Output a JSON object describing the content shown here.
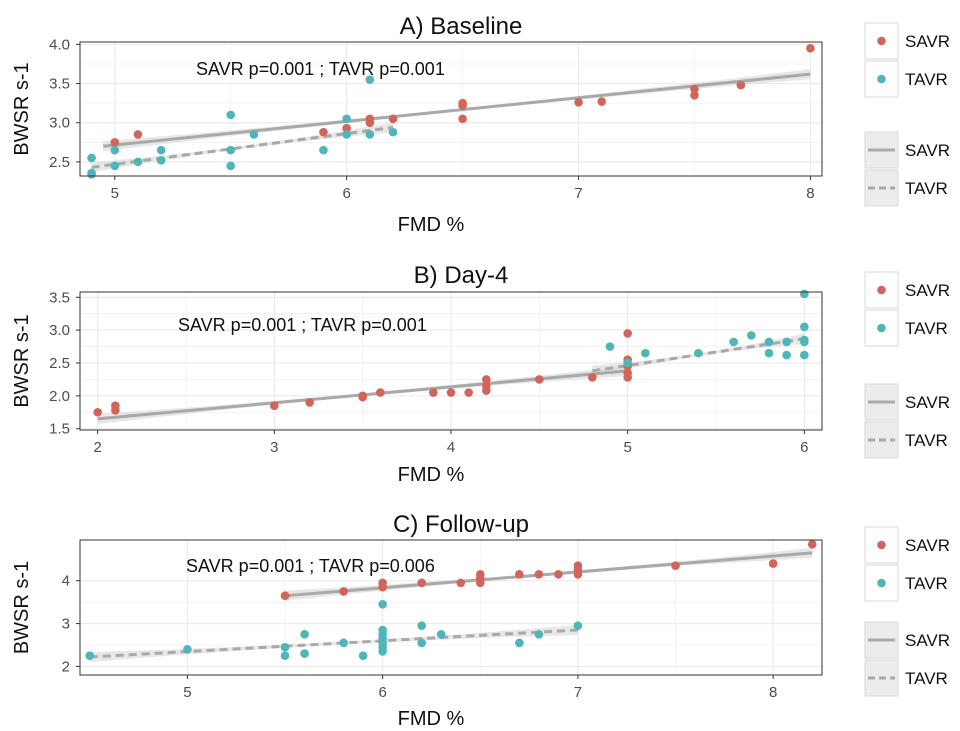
{
  "figure": {
    "colors": {
      "SAVR": "#d2645a",
      "TAVR": "#4db6b8",
      "fit_line": "#a9a9a9",
      "ribbon": "#d4d4d4",
      "grid": "#ebebeb",
      "panel_border": "#333333"
    }
  },
  "chart_data": [
    {
      "type": "scatter",
      "title": "A) Baseline",
      "xlabel": "FMD %",
      "ylabel": "BWSR s-1",
      "annotation": "SAVR p=0.001 ; TAVR p=0.001",
      "xlim": [
        4.85,
        8.05
      ],
      "ylim": [
        2.32,
        4.03
      ],
      "xticks": [
        5,
        6,
        7,
        8
      ],
      "yticks": [
        2.5,
        3.0,
        3.5,
        4.0
      ],
      "ytick_labels": [
        "2.5",
        "3.0",
        "3.5",
        "4.0"
      ],
      "grid": true,
      "legend_position": "right",
      "point_legend": {
        "entries": [
          "SAVR",
          "TAVR"
        ]
      },
      "line_legend": {
        "entries": [
          "SAVR",
          "TAVR"
        ]
      },
      "series": [
        {
          "name": "SAVR",
          "points": [
            [
              5.0,
              2.75
            ],
            [
              5.1,
              2.85
            ],
            [
              5.9,
              2.88
            ],
            [
              6.0,
              2.93
            ],
            [
              6.1,
              3.0
            ],
            [
              6.1,
              3.05
            ],
            [
              6.2,
              3.05
            ],
            [
              6.5,
              3.25
            ],
            [
              6.5,
              3.22
            ],
            [
              6.5,
              3.05
            ],
            [
              7.0,
              3.26
            ],
            [
              7.1,
              3.27
            ],
            [
              7.5,
              3.43
            ],
            [
              7.5,
              3.35
            ],
            [
              7.7,
              3.48
            ],
            [
              8.0,
              3.95
            ]
          ],
          "fit": {
            "x": [
              4.95,
              8.0
            ],
            "y": [
              2.7,
              3.62
            ],
            "dash": false
          }
        },
        {
          "name": "TAVR",
          "points": [
            [
              4.9,
              2.55
            ],
            [
              4.9,
              2.36
            ],
            [
              4.9,
              2.34
            ],
            [
              5.0,
              2.65
            ],
            [
              5.0,
              2.45
            ],
            [
              5.1,
              2.5
            ],
            [
              5.2,
              2.65
            ],
            [
              5.2,
              2.52
            ],
            [
              5.5,
              3.1
            ],
            [
              5.5,
              2.65
            ],
            [
              5.5,
              2.45
            ],
            [
              5.6,
              2.85
            ],
            [
              5.9,
              2.65
            ],
            [
              6.0,
              3.05
            ],
            [
              6.0,
              2.85
            ],
            [
              6.1,
              3.55
            ],
            [
              6.1,
              2.85
            ],
            [
              6.2,
              2.88
            ]
          ],
          "fit": {
            "x": [
              4.9,
              6.2
            ],
            "y": [
              2.43,
              2.94
            ],
            "dash": true
          }
        }
      ]
    },
    {
      "type": "scatter",
      "title": "B) Day-4",
      "xlabel": "FMD %",
      "ylabel": "BWSR s-1",
      "annotation": "SAVR p=0.001 ; TAVR p=0.001",
      "xlim": [
        1.9,
        6.1
      ],
      "ylim": [
        1.48,
        3.58
      ],
      "xticks": [
        2,
        3,
        4,
        5,
        6
      ],
      "yticks": [
        1.5,
        2.0,
        2.5,
        3.0,
        3.5
      ],
      "ytick_labels": [
        "1.5",
        "2.0",
        "2.5",
        "3.0",
        "3.5"
      ],
      "grid": true,
      "legend_position": "right",
      "point_legend": {
        "entries": [
          "SAVR",
          "TAVR"
        ]
      },
      "line_legend": {
        "entries": [
          "SAVR",
          "TAVR"
        ]
      },
      "series": [
        {
          "name": "SAVR",
          "points": [
            [
              2.0,
              1.75
            ],
            [
              2.1,
              1.85
            ],
            [
              2.1,
              1.78
            ],
            [
              3.0,
              1.85
            ],
            [
              3.2,
              1.9
            ],
            [
              3.5,
              2.0
            ],
            [
              3.5,
              1.98
            ],
            [
              3.6,
              2.05
            ],
            [
              3.9,
              2.05
            ],
            [
              4.0,
              2.05
            ],
            [
              4.1,
              2.05
            ],
            [
              4.2,
              2.25
            ],
            [
              4.2,
              2.15
            ],
            [
              4.2,
              2.08
            ],
            [
              4.5,
              2.25
            ],
            [
              4.8,
              2.28
            ],
            [
              5.0,
              2.95
            ],
            [
              5.0,
              2.55
            ],
            [
              5.0,
              2.45
            ],
            [
              5.0,
              2.35
            ],
            [
              5.0,
              2.28
            ]
          ],
          "fit": {
            "x": [
              2.0,
              5.0
            ],
            "y": [
              1.65,
              2.38
            ],
            "dash": false
          }
        },
        {
          "name": "TAVR",
          "points": [
            [
              4.9,
              2.75
            ],
            [
              5.0,
              2.5
            ],
            [
              5.1,
              2.65
            ],
            [
              5.4,
              2.65
            ],
            [
              5.6,
              2.82
            ],
            [
              5.7,
              2.92
            ],
            [
              5.8,
              2.82
            ],
            [
              5.8,
              2.65
            ],
            [
              5.9,
              2.82
            ],
            [
              5.9,
              2.62
            ],
            [
              6.0,
              3.55
            ],
            [
              6.0,
              3.05
            ],
            [
              6.0,
              2.85
            ],
            [
              6.0,
              2.82
            ],
            [
              6.0,
              2.62
            ]
          ],
          "fit": {
            "x": [
              4.8,
              6.0
            ],
            "y": [
              2.38,
              2.87
            ],
            "dash": true
          }
        }
      ]
    },
    {
      "type": "scatter",
      "title": "C) Follow-up",
      "xlabel": "FMD %",
      "ylabel": "BWSR s-1",
      "annotation": "SAVR p=0.001 ; TAVR p=0.006",
      "xlim": [
        4.45,
        8.25
      ],
      "ylim": [
        1.8,
        4.95
      ],
      "xticks": [
        5,
        6,
        7,
        8
      ],
      "yticks": [
        2,
        3,
        4
      ],
      "ytick_labels": [
        "2",
        "3",
        "4"
      ],
      "grid": true,
      "legend_position": "right",
      "point_legend": {
        "entries": [
          "SAVR",
          "TAVR"
        ]
      },
      "line_legend": {
        "entries": [
          "SAVR",
          "TAVR"
        ]
      },
      "series": [
        {
          "name": "SAVR",
          "points": [
            [
              5.5,
              3.65
            ],
            [
              5.8,
              3.75
            ],
            [
              6.0,
              3.95
            ],
            [
              6.0,
              3.85
            ],
            [
              6.2,
              3.95
            ],
            [
              6.4,
              3.95
            ],
            [
              6.5,
              4.15
            ],
            [
              6.5,
              4.05
            ],
            [
              6.5,
              3.95
            ],
            [
              6.7,
              4.15
            ],
            [
              6.8,
              4.15
            ],
            [
              6.9,
              4.15
            ],
            [
              7.0,
              4.35
            ],
            [
              7.0,
              4.25
            ],
            [
              7.0,
              4.15
            ],
            [
              7.5,
              4.35
            ],
            [
              8.0,
              4.4
            ],
            [
              8.2,
              4.85
            ]
          ],
          "fit": {
            "x": [
              5.5,
              8.2
            ],
            "y": [
              3.65,
              4.65
            ],
            "dash": false
          }
        },
        {
          "name": "TAVR",
          "points": [
            [
              4.5,
              2.25
            ],
            [
              5.0,
              2.4
            ],
            [
              5.5,
              2.45
            ],
            [
              5.5,
              2.25
            ],
            [
              5.6,
              2.75
            ],
            [
              5.6,
              2.3
            ],
            [
              5.8,
              2.55
            ],
            [
              5.9,
              2.25
            ],
            [
              6.0,
              3.45
            ],
            [
              6.0,
              2.85
            ],
            [
              6.0,
              2.75
            ],
            [
              6.0,
              2.65
            ],
            [
              6.0,
              2.55
            ],
            [
              6.0,
              2.45
            ],
            [
              6.0,
              2.35
            ],
            [
              6.2,
              2.95
            ],
            [
              6.2,
              2.55
            ],
            [
              6.3,
              2.75
            ],
            [
              6.7,
              2.55
            ],
            [
              6.8,
              2.75
            ],
            [
              7.0,
              2.95
            ]
          ],
          "fit": {
            "x": [
              4.5,
              7.0
            ],
            "y": [
              2.22,
              2.85
            ],
            "dash": true
          }
        }
      ]
    }
  ]
}
